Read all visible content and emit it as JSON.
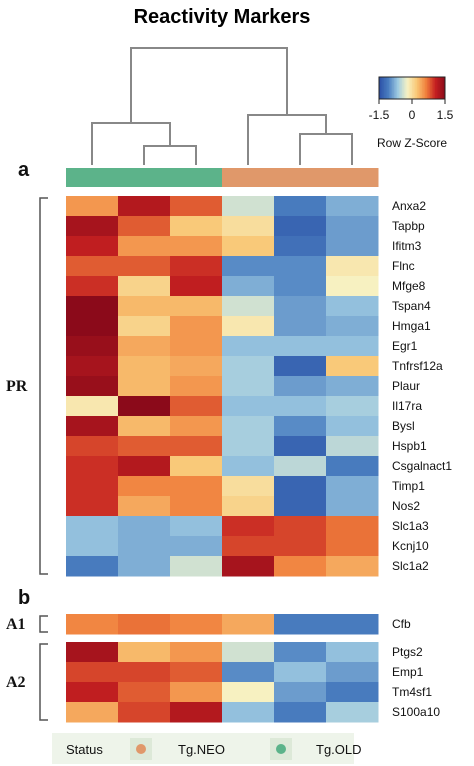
{
  "chart_data": {
    "type": "heatmap",
    "title": "Reactivity Markers",
    "panel_labels": [
      "a",
      "b"
    ],
    "color_key": {
      "title": "Row Z-Score",
      "ticks": [
        "-1.5",
        "0",
        "1.5"
      ],
      "range": [
        -1.5,
        1.5
      ],
      "colors": [
        "#2b4fa6",
        "#4a7ec0",
        "#9ecae1",
        "#f7f2c4",
        "#f9c876",
        "#f07f3c",
        "#c41f20",
        "#8b0a1a"
      ]
    },
    "status_legend": {
      "label": "Status",
      "items": [
        {
          "name": "Tg.NEO",
          "color": "#e0986a"
        },
        {
          "name": "Tg.OLD",
          "color": "#5cb38a"
        }
      ]
    },
    "columns": [
      {
        "status": "Tg.OLD"
      },
      {
        "status": "Tg.OLD"
      },
      {
        "status": "Tg.OLD"
      },
      {
        "status": "Tg.NEO"
      },
      {
        "status": "Tg.NEO"
      },
      {
        "status": "Tg.NEO"
      }
    ],
    "blocks": [
      {
        "label": "PR",
        "rows": [
          {
            "gene": "Anxa2",
            "values": [
              0.5,
              1.2,
              0.8,
              -0.4,
              -1.1,
              -0.8
            ]
          },
          {
            "gene": "Tapbp",
            "values": [
              1.3,
              0.8,
              0.2,
              0.0,
              -1.3,
              -0.9
            ]
          },
          {
            "gene": "Ifitm3",
            "values": [
              1.1,
              0.5,
              0.5,
              0.2,
              -1.2,
              -0.9
            ]
          },
          {
            "gene": "Flnc",
            "values": [
              0.8,
              0.8,
              1.0,
              -1.0,
              -1.0,
              -0.1
            ]
          },
          {
            "gene": "Mfge8",
            "values": [
              1.0,
              0.1,
              1.1,
              -0.8,
              -1.0,
              -0.2
            ]
          },
          {
            "gene": "Tspan4",
            "values": [
              1.6,
              0.3,
              0.3,
              -0.4,
              -0.9,
              -0.7
            ]
          },
          {
            "gene": "Hmga1",
            "values": [
              1.5,
              0.1,
              0.5,
              -0.1,
              -0.9,
              -0.8
            ]
          },
          {
            "gene": "Egr1",
            "values": [
              1.4,
              0.4,
              0.5,
              -0.7,
              -0.7,
              -0.7
            ]
          },
          {
            "gene": "Tnfrsf12a",
            "values": [
              1.3,
              0.3,
              0.4,
              -0.6,
              -1.3,
              0.2
            ]
          },
          {
            "gene": "Plaur",
            "values": [
              1.4,
              0.3,
              0.5,
              -0.6,
              -0.9,
              -0.8
            ]
          },
          {
            "gene": "Il17ra",
            "values": [
              -0.1,
              1.5,
              0.8,
              -0.7,
              -0.7,
              -0.6
            ]
          },
          {
            "gene": "Bysl",
            "values": [
              1.3,
              0.3,
              0.5,
              -0.6,
              -1.0,
              -0.7
            ]
          },
          {
            "gene": "Hspb1",
            "values": [
              0.9,
              0.8,
              0.8,
              -0.6,
              -1.3,
              -0.5
            ]
          },
          {
            "gene": "Csgalnact1",
            "values": [
              1.0,
              1.2,
              0.2,
              -0.7,
              -0.5,
              -1.1
            ]
          },
          {
            "gene": "Timp1",
            "values": [
              1.0,
              0.6,
              0.6,
              0.0,
              -1.3,
              -0.8
            ]
          },
          {
            "gene": "Nos2",
            "values": [
              1.0,
              0.4,
              0.6,
              0.1,
              -1.3,
              -0.8
            ]
          },
          {
            "gene": "Slc1a3",
            "values": [
              -0.7,
              -0.8,
              -0.7,
              1.0,
              0.9,
              0.7
            ]
          },
          {
            "gene": "Kcnj10",
            "values": [
              -0.7,
              -0.8,
              -0.8,
              0.9,
              0.9,
              0.7
            ]
          },
          {
            "gene": "Slc1a2",
            "values": [
              -1.1,
              -0.8,
              -0.4,
              1.3,
              0.6,
              0.4
            ]
          }
        ]
      },
      {
        "label": "A1",
        "rows": [
          {
            "gene": "Cfb",
            "values": [
              0.6,
              0.7,
              0.6,
              0.4,
              -1.1,
              -1.1
            ]
          }
        ]
      },
      {
        "label": "A2",
        "rows": [
          {
            "gene": "Ptgs2",
            "values": [
              1.3,
              0.3,
              0.5,
              -0.4,
              -1.0,
              -0.7
            ]
          },
          {
            "gene": "Emp1",
            "values": [
              0.9,
              0.9,
              0.8,
              -1.0,
              -0.7,
              -0.9
            ]
          },
          {
            "gene": "Tm4sf1",
            "values": [
              1.1,
              0.8,
              0.5,
              -0.2,
              -0.9,
              -1.1
            ]
          },
          {
            "gene": "S100a10",
            "values": [
              0.4,
              0.9,
              1.2,
              -0.7,
              -1.1,
              -0.6
            ]
          }
        ]
      }
    ]
  }
}
